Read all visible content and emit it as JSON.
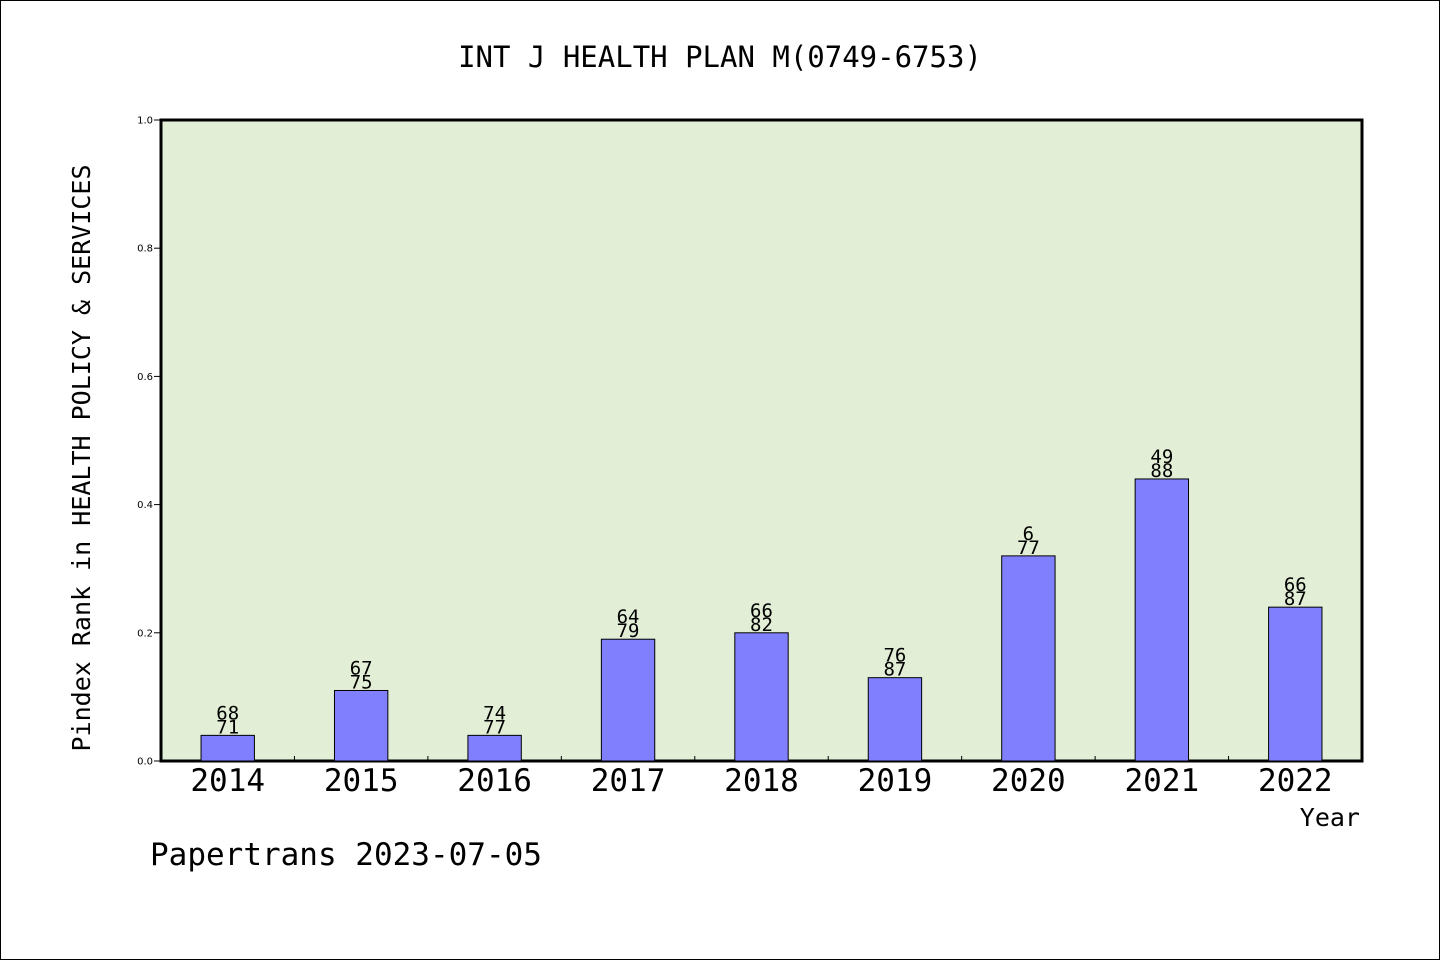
{
  "chart_data": {
    "type": "bar",
    "title": "INT J HEALTH PLAN M(0749-6753)",
    "xlabel": "Year",
    "ylabel": "Pindex Rank in HEALTH POLICY & SERVICES",
    "categories": [
      "2014",
      "2015",
      "2016",
      "2017",
      "2018",
      "2019",
      "2020",
      "2021",
      "2022"
    ],
    "values": [
      0.04,
      0.11,
      0.04,
      0.19,
      0.2,
      0.13,
      0.32,
      0.44,
      0.24
    ],
    "rank_labels": [
      "68",
      "67",
      "74",
      "64",
      "66",
      "76",
      "6",
      "49",
      "66"
    ],
    "total_labels": [
      "71",
      "75",
      "77",
      "79",
      "82",
      "87",
      "77",
      "88",
      "87"
    ],
    "ylim": [
      0,
      1.0
    ],
    "yticks": [
      "0.0",
      "0.2",
      "0.4",
      "0.6",
      "0.8",
      "1.0"
    ],
    "grid": false,
    "colors": {
      "plot_bg": "#e2efd6",
      "bar_fill": "#8080ff",
      "bar_stroke": "#000000"
    }
  },
  "footer": {
    "credit": "Papertrans 2023-07-05"
  }
}
